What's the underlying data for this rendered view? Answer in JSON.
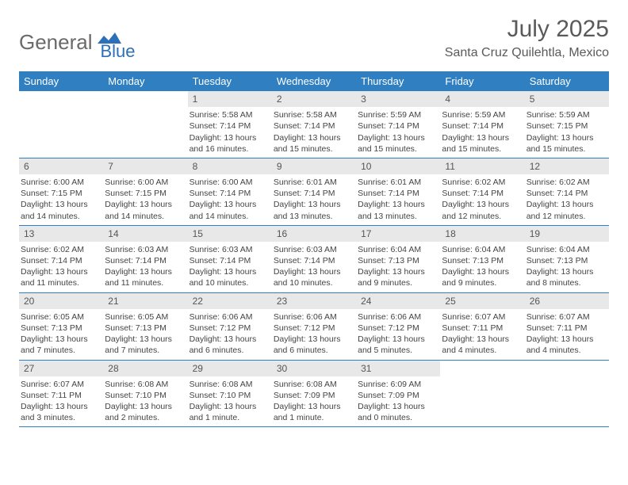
{
  "brand": {
    "part1": "General",
    "part2": "Blue",
    "color_gray": "#6a6a6a",
    "color_blue": "#2b70b8"
  },
  "title": "July 2025",
  "location": "Santa Cruz Quilehtla, Mexico",
  "colors": {
    "header_bg": "#2f7fc1",
    "daynum_bg": "#e8e8e8",
    "row_border": "#2f7fc1",
    "text": "#444444"
  },
  "day_headers": [
    "Sunday",
    "Monday",
    "Tuesday",
    "Wednesday",
    "Thursday",
    "Friday",
    "Saturday"
  ],
  "weeks": [
    [
      null,
      null,
      {
        "n": "1",
        "sunrise": "5:58 AM",
        "sunset": "7:14 PM",
        "daylight": "13 hours and 16 minutes."
      },
      {
        "n": "2",
        "sunrise": "5:58 AM",
        "sunset": "7:14 PM",
        "daylight": "13 hours and 15 minutes."
      },
      {
        "n": "3",
        "sunrise": "5:59 AM",
        "sunset": "7:14 PM",
        "daylight": "13 hours and 15 minutes."
      },
      {
        "n": "4",
        "sunrise": "5:59 AM",
        "sunset": "7:14 PM",
        "daylight": "13 hours and 15 minutes."
      },
      {
        "n": "5",
        "sunrise": "5:59 AM",
        "sunset": "7:15 PM",
        "daylight": "13 hours and 15 minutes."
      }
    ],
    [
      {
        "n": "6",
        "sunrise": "6:00 AM",
        "sunset": "7:15 PM",
        "daylight": "13 hours and 14 minutes."
      },
      {
        "n": "7",
        "sunrise": "6:00 AM",
        "sunset": "7:15 PM",
        "daylight": "13 hours and 14 minutes."
      },
      {
        "n": "8",
        "sunrise": "6:00 AM",
        "sunset": "7:14 PM",
        "daylight": "13 hours and 14 minutes."
      },
      {
        "n": "9",
        "sunrise": "6:01 AM",
        "sunset": "7:14 PM",
        "daylight": "13 hours and 13 minutes."
      },
      {
        "n": "10",
        "sunrise": "6:01 AM",
        "sunset": "7:14 PM",
        "daylight": "13 hours and 13 minutes."
      },
      {
        "n": "11",
        "sunrise": "6:02 AM",
        "sunset": "7:14 PM",
        "daylight": "13 hours and 12 minutes."
      },
      {
        "n": "12",
        "sunrise": "6:02 AM",
        "sunset": "7:14 PM",
        "daylight": "13 hours and 12 minutes."
      }
    ],
    [
      {
        "n": "13",
        "sunrise": "6:02 AM",
        "sunset": "7:14 PM",
        "daylight": "13 hours and 11 minutes."
      },
      {
        "n": "14",
        "sunrise": "6:03 AM",
        "sunset": "7:14 PM",
        "daylight": "13 hours and 11 minutes."
      },
      {
        "n": "15",
        "sunrise": "6:03 AM",
        "sunset": "7:14 PM",
        "daylight": "13 hours and 10 minutes."
      },
      {
        "n": "16",
        "sunrise": "6:03 AM",
        "sunset": "7:14 PM",
        "daylight": "13 hours and 10 minutes."
      },
      {
        "n": "17",
        "sunrise": "6:04 AM",
        "sunset": "7:13 PM",
        "daylight": "13 hours and 9 minutes."
      },
      {
        "n": "18",
        "sunrise": "6:04 AM",
        "sunset": "7:13 PM",
        "daylight": "13 hours and 9 minutes."
      },
      {
        "n": "19",
        "sunrise": "6:04 AM",
        "sunset": "7:13 PM",
        "daylight": "13 hours and 8 minutes."
      }
    ],
    [
      {
        "n": "20",
        "sunrise": "6:05 AM",
        "sunset": "7:13 PM",
        "daylight": "13 hours and 7 minutes."
      },
      {
        "n": "21",
        "sunrise": "6:05 AM",
        "sunset": "7:13 PM",
        "daylight": "13 hours and 7 minutes."
      },
      {
        "n": "22",
        "sunrise": "6:06 AM",
        "sunset": "7:12 PM",
        "daylight": "13 hours and 6 minutes."
      },
      {
        "n": "23",
        "sunrise": "6:06 AM",
        "sunset": "7:12 PM",
        "daylight": "13 hours and 6 minutes."
      },
      {
        "n": "24",
        "sunrise": "6:06 AM",
        "sunset": "7:12 PM",
        "daylight": "13 hours and 5 minutes."
      },
      {
        "n": "25",
        "sunrise": "6:07 AM",
        "sunset": "7:11 PM",
        "daylight": "13 hours and 4 minutes."
      },
      {
        "n": "26",
        "sunrise": "6:07 AM",
        "sunset": "7:11 PM",
        "daylight": "13 hours and 4 minutes."
      }
    ],
    [
      {
        "n": "27",
        "sunrise": "6:07 AM",
        "sunset": "7:11 PM",
        "daylight": "13 hours and 3 minutes."
      },
      {
        "n": "28",
        "sunrise": "6:08 AM",
        "sunset": "7:10 PM",
        "daylight": "13 hours and 2 minutes."
      },
      {
        "n": "29",
        "sunrise": "6:08 AM",
        "sunset": "7:10 PM",
        "daylight": "13 hours and 1 minute."
      },
      {
        "n": "30",
        "sunrise": "6:08 AM",
        "sunset": "7:09 PM",
        "daylight": "13 hours and 1 minute."
      },
      {
        "n": "31",
        "sunrise": "6:09 AM",
        "sunset": "7:09 PM",
        "daylight": "13 hours and 0 minutes."
      },
      null,
      null
    ]
  ],
  "labels": {
    "sunrise": "Sunrise:",
    "sunset": "Sunset:",
    "daylight": "Daylight:"
  }
}
